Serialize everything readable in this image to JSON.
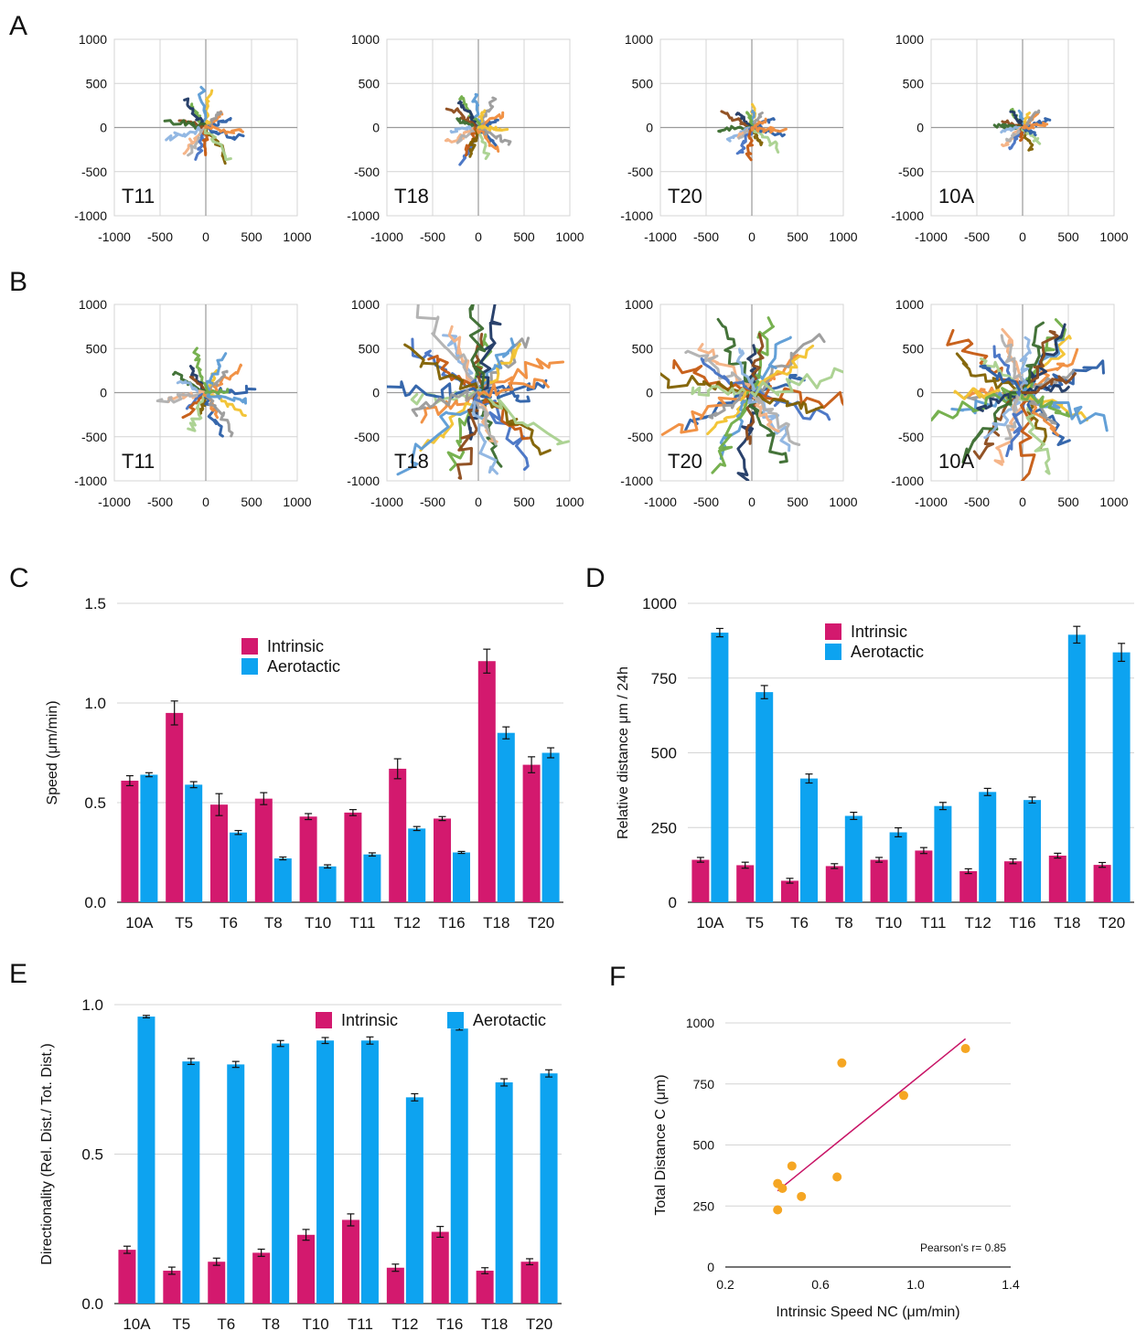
{
  "colors": {
    "intrinsic": "#d3196e",
    "aerotactic": "#0da3f0",
    "scatter_point": "#f5a623",
    "fit_line": "#c81466",
    "grid": "#d4d4d4",
    "axis": "#9a9a9a",
    "track_palette": [
      "#2b5fa8",
      "#f08c3c",
      "#9a9a9a",
      "#f2c22e",
      "#5b9bd5",
      "#70ad47",
      "#1f3864",
      "#8c4a1a",
      "#3a6b2e",
      "#8db4e2",
      "#f4b183",
      "#b0b0b0",
      "#4472c4",
      "#c55a11",
      "#7f6000",
      "#a9d18e"
    ]
  },
  "chart_data": [
    {
      "panel": "A",
      "type": "scatter",
      "subtype": "trajectory-grid",
      "x_ticks": [
        "-1000",
        "-500",
        "0",
        "500",
        "1000"
      ],
      "y_ticks": [
        "1000",
        "500",
        "0",
        "-500",
        "-1000"
      ],
      "xlim": [
        -1000,
        1000
      ],
      "ylim": [
        -1000,
        1000
      ],
      "grid": true,
      "plots": [
        {
          "label": "T11",
          "max_radius": 450,
          "n_tracks": 18
        },
        {
          "label": "T18",
          "max_radius": 430,
          "n_tracks": 20
        },
        {
          "label": "T20",
          "max_radius": 380,
          "n_tracks": 18
        },
        {
          "label": "10A",
          "max_radius": 300,
          "n_tracks": 18
        }
      ]
    },
    {
      "panel": "B",
      "type": "scatter",
      "subtype": "trajectory-grid",
      "x_ticks": [
        "-1000",
        "-500",
        "0",
        "500",
        "1000"
      ],
      "y_ticks": [
        "1000",
        "500",
        "0",
        "-500",
        "-1000"
      ],
      "xlim": [
        -1000,
        1000
      ],
      "ylim": [
        -1000,
        1000
      ],
      "grid": true,
      "plots": [
        {
          "label": "T11",
          "max_radius": 520,
          "n_tracks": 22
        },
        {
          "label": "T18",
          "max_radius": 1150,
          "n_tracks": 34
        },
        {
          "label": "T20",
          "max_radius": 1050,
          "n_tracks": 32
        },
        {
          "label": "10A",
          "max_radius": 1000,
          "n_tracks": 40
        }
      ]
    },
    {
      "panel": "C",
      "type": "bar",
      "ylabel": "Speed (μm/min)",
      "ylim": [
        0,
        1.5
      ],
      "y_ticks": [
        "0.0",
        "0.5",
        "1.0",
        "1.5"
      ],
      "y_tick_values": [
        0,
        0.5,
        1.0,
        1.5
      ],
      "legend_position": "top-left",
      "categories": [
        "10A",
        "T5",
        "T6",
        "T8",
        "T10",
        "T11",
        "T12",
        "T16",
        "T18",
        "T20"
      ],
      "series": [
        {
          "name": "Intrinsic",
          "values": [
            0.61,
            0.95,
            0.49,
            0.52,
            0.43,
            0.45,
            0.67,
            0.42,
            1.21,
            0.69
          ],
          "errors": [
            0.025,
            0.06,
            0.055,
            0.03,
            0.015,
            0.015,
            0.05,
            0.01,
            0.06,
            0.04
          ]
        },
        {
          "name": "Aerotactic",
          "values": [
            0.64,
            0.59,
            0.35,
            0.22,
            0.18,
            0.24,
            0.37,
            0.25,
            0.85,
            0.75
          ],
          "errors": [
            0.01,
            0.015,
            0.01,
            0.007,
            0.008,
            0.008,
            0.01,
            0.005,
            0.03,
            0.025
          ]
        }
      ]
    },
    {
      "panel": "D",
      "type": "bar",
      "ylabel": "Relative distance μm / 24h",
      "ylim": [
        0,
        1000
      ],
      "y_ticks": [
        "0",
        "250",
        "500",
        "750",
        "1000"
      ],
      "y_tick_values": [
        0,
        250,
        500,
        750,
        1000
      ],
      "legend_position": "top-center",
      "categories": [
        "10A",
        "T5",
        "T6",
        "T8",
        "T10",
        "T11",
        "T12",
        "T16",
        "T18",
        "T20"
      ],
      "series": [
        {
          "name": "Intrinsic",
          "values": [
            142,
            124,
            72,
            121,
            142,
            173,
            104,
            137,
            156,
            125
          ],
          "errors": [
            8,
            10,
            8,
            8,
            8,
            10,
            8,
            8,
            8,
            8
          ]
        },
        {
          "name": "Aerotactic",
          "values": [
            902,
            703,
            414,
            289,
            234,
            322,
            369,
            342,
            895,
            836
          ],
          "errors": [
            14,
            22,
            15,
            12,
            15,
            12,
            12,
            10,
            28,
            30
          ]
        }
      ]
    },
    {
      "panel": "E",
      "type": "bar",
      "ylabel": "Directionality (Rel. Dist./ Tot. Dist.)",
      "ylim": [
        0,
        1.0
      ],
      "y_ticks": [
        "0.0",
        "0.5",
        "1.0"
      ],
      "y_tick_values": [
        0,
        0.5,
        1.0
      ],
      "legend_position": "top-right",
      "categories": [
        "10A",
        "T5",
        "T6",
        "T8",
        "T10",
        "T11",
        "T12",
        "T16",
        "T18",
        "T20"
      ],
      "series": [
        {
          "name": "Intrinsic",
          "values": [
            0.18,
            0.11,
            0.14,
            0.17,
            0.23,
            0.28,
            0.12,
            0.24,
            0.11,
            0.14
          ],
          "errors": [
            0.012,
            0.012,
            0.012,
            0.012,
            0.018,
            0.02,
            0.012,
            0.018,
            0.01,
            0.01
          ]
        },
        {
          "name": "Aerotactic",
          "values": [
            0.96,
            0.81,
            0.8,
            0.87,
            0.88,
            0.88,
            0.69,
            0.92,
            0.74,
            0.77
          ],
          "errors": [
            0.004,
            0.01,
            0.01,
            0.01,
            0.01,
            0.012,
            0.012,
            0.005,
            0.012,
            0.012
          ]
        }
      ]
    },
    {
      "panel": "F",
      "type": "scatter",
      "xlabel": "Intrinsic Speed NC (μm/min)",
      "ylabel": "Total Distance C (μm)",
      "xlim": [
        0.2,
        1.4
      ],
      "ylim": [
        0,
        1000
      ],
      "x_ticks": [
        "0.2",
        "0.6",
        "1.0",
        "1.4"
      ],
      "x_tick_values": [
        0.2,
        0.6,
        1.0,
        1.4
      ],
      "y_ticks": [
        "0",
        "250",
        "500",
        "750",
        "1000"
      ],
      "y_tick_values": [
        0,
        250,
        500,
        750,
        1000
      ],
      "points": [
        {
          "x": 0.42,
          "y": 342
        },
        {
          "x": 0.42,
          "y": 234
        },
        {
          "x": 0.44,
          "y": 322
        },
        {
          "x": 0.48,
          "y": 414
        },
        {
          "x": 0.52,
          "y": 289
        },
        {
          "x": 0.67,
          "y": 369
        },
        {
          "x": 0.69,
          "y": 836
        },
        {
          "x": 0.95,
          "y": 703
        },
        {
          "x": 1.21,
          "y": 895
        }
      ],
      "fit_line": {
        "x0": 0.42,
        "y0": 312,
        "x1": 1.21,
        "y1": 935
      },
      "annotation": "Pearson's r= 0.85"
    }
  ]
}
